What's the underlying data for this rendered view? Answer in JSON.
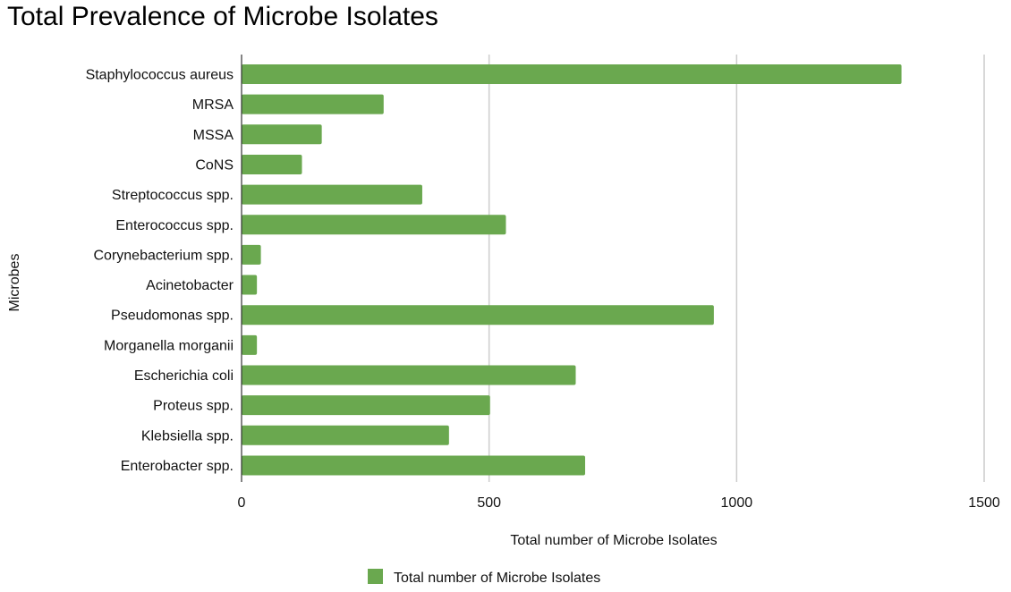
{
  "chart_data": {
    "type": "bar",
    "orientation": "horizontal",
    "title": "Total Prevalence of Microbe Isolates",
    "xlabel": "Total number of Microbe Isolates",
    "ylabel": "Microbes",
    "xlim": [
      0,
      1500
    ],
    "xticks": [
      0,
      500,
      1000,
      1500
    ],
    "grid": "vertical",
    "legend_position": "bottom",
    "categories": [
      "Staphylococcus aureus",
      "MRSA",
      "MSSA",
      "CoNS",
      "Streptococcus spp.",
      "Enterococcus spp.",
      "Corynebacterium spp.",
      "Acinetobacter",
      "Pseudomonas spp.",
      "Morganella morganii",
      "Escherichia coli",
      "Proteus spp.",
      "Klebsiella spp.",
      "Enterobacter spp."
    ],
    "series": [
      {
        "name": "Total number of Microbe Isolates",
        "color": "#6aa84f",
        "values": [
          1333,
          287,
          162,
          122,
          365,
          534,
          39,
          31,
          954,
          31,
          675,
          502,
          419,
          694
        ]
      }
    ]
  }
}
